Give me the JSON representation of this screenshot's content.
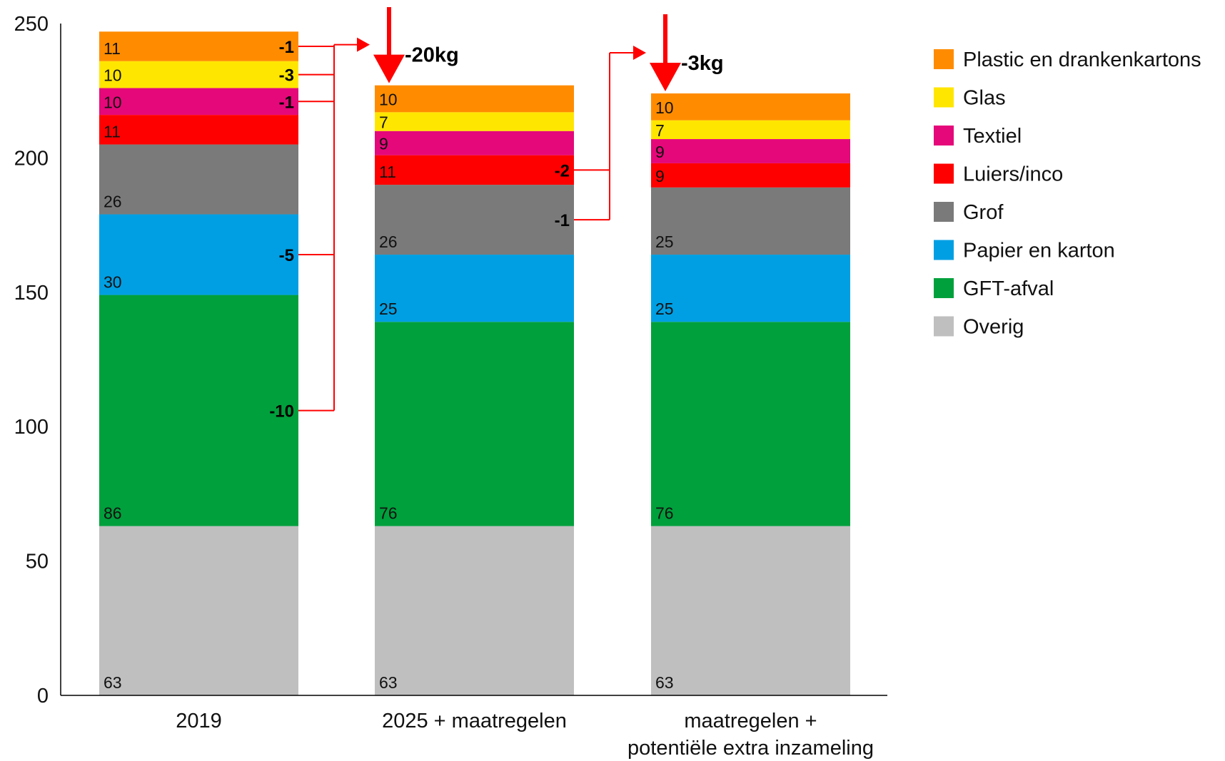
{
  "chart_data": {
    "type": "bar",
    "stacked": true,
    "categories": [
      [
        "2019"
      ],
      [
        "2025 + maatregelen"
      ],
      [
        "maatregelen +",
        "potentiële extra inzameling"
      ]
    ],
    "ylim": [
      0,
      250
    ],
    "yticks": [
      0,
      50,
      100,
      150,
      200,
      250
    ],
    "grid": false,
    "legend_position": "right",
    "series": [
      {
        "name": "Overig",
        "color": "#bfbfbf",
        "values": [
          63,
          63,
          63
        ],
        "labels": [
          "63",
          "63",
          "63"
        ]
      },
      {
        "name": "GFT-afval",
        "color": "#00a03c",
        "values": [
          86,
          76,
          76
        ],
        "labels": [
          "86",
          "76",
          "76"
        ]
      },
      {
        "name": "Papier en karton",
        "color": "#009fe3",
        "values": [
          30,
          25,
          25
        ],
        "labels": [
          "30",
          "25",
          "25"
        ]
      },
      {
        "name": "Grof",
        "color": "#7a7a7a",
        "values": [
          26,
          26,
          25
        ],
        "labels": [
          "26",
          "26",
          "25"
        ]
      },
      {
        "name": "Luiers/inco",
        "color": "#ff0000",
        "values": [
          11,
          11,
          9
        ],
        "labels": [
          "11",
          "11",
          "9"
        ]
      },
      {
        "name": "Textiel",
        "color": "#e5087a",
        "values": [
          10,
          9,
          9
        ],
        "labels": [
          "10",
          "9",
          "9"
        ]
      },
      {
        "name": "Glas",
        "color": "#ffe600",
        "values": [
          10,
          7,
          7
        ],
        "labels": [
          "10",
          "7",
          "7"
        ]
      },
      {
        "name": "Plastic en drankenkartons",
        "color": "#ff8c00",
        "values": [
          11,
          10,
          10
        ],
        "labels": [
          "11",
          "10",
          "10"
        ]
      }
    ],
    "legend_order": [
      "Plastic en drankenkartons",
      "Glas",
      "Textiel",
      "Luiers/inco",
      "Grof",
      "Papier en karton",
      "GFT-afval",
      "Overig"
    ],
    "changes": [
      {
        "from_bar": 0,
        "to_bar": 1,
        "total_change": "-20kg",
        "items": [
          {
            "series": "Plastic en drankenkartons",
            "label": "-1"
          },
          {
            "series": "Glas",
            "label": "-3"
          },
          {
            "series": "Textiel",
            "label": "-1"
          },
          {
            "series": "Papier en karton",
            "label": "-5"
          },
          {
            "series": "GFT-afval",
            "label": "-10"
          }
        ]
      },
      {
        "from_bar": 1,
        "to_bar": 2,
        "total_change": "-3kg",
        "items": [
          {
            "series": "Luiers/inco",
            "label": "-2"
          },
          {
            "series": "Grof",
            "label": "-1"
          }
        ]
      }
    ],
    "annotation_color": "#ff0000"
  }
}
